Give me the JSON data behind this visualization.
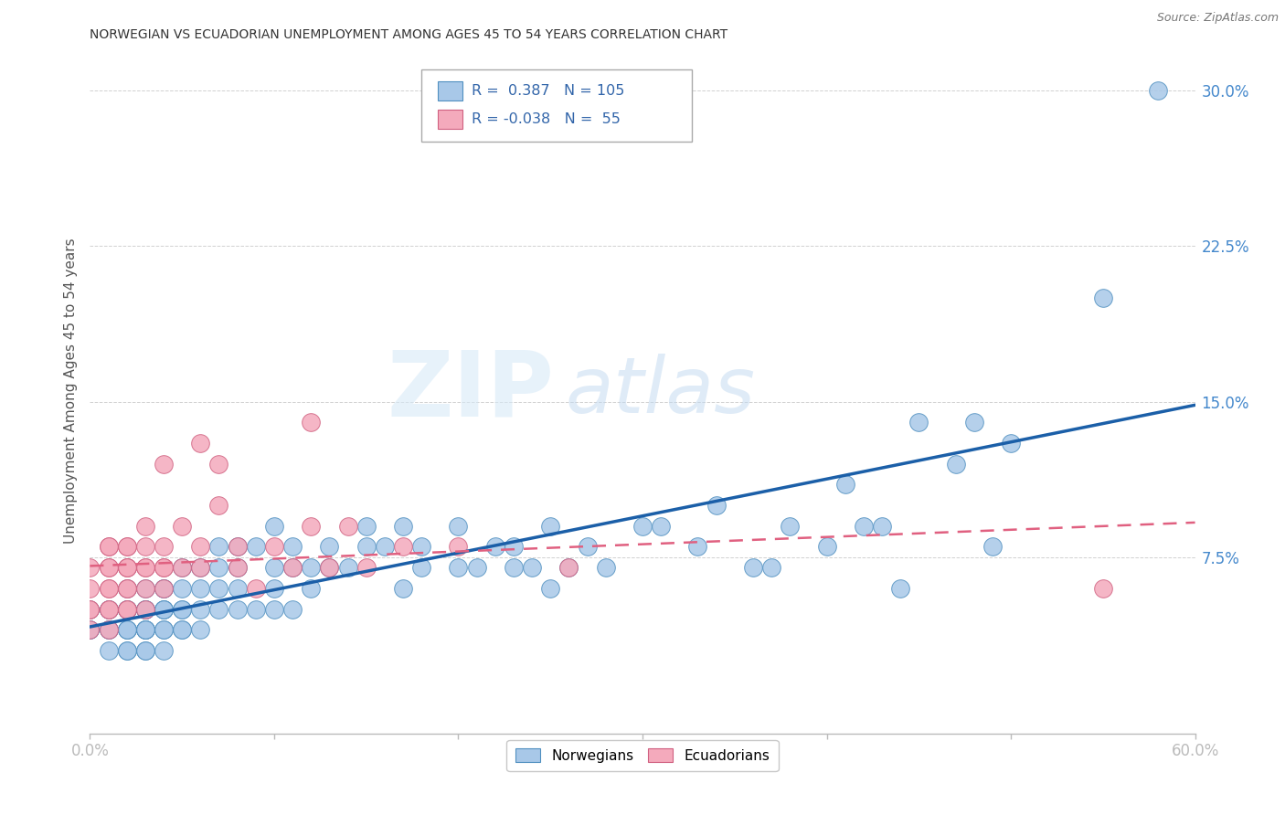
{
  "title": "NORWEGIAN VS ECUADORIAN UNEMPLOYMENT AMONG AGES 45 TO 54 YEARS CORRELATION CHART",
  "source": "Source: ZipAtlas.com",
  "ylabel": "Unemployment Among Ages 45 to 54 years",
  "xlim": [
    0.0,
    0.6
  ],
  "ylim": [
    -0.01,
    0.32
  ],
  "yticks": [
    0.075,
    0.15,
    0.225,
    0.3
  ],
  "ytick_labels": [
    "7.5%",
    "15.0%",
    "22.5%",
    "30.0%"
  ],
  "xticks": [
    0.0,
    0.1,
    0.2,
    0.3,
    0.4,
    0.5,
    0.6
  ],
  "norwegian_color": "#A8C8E8",
  "norwegian_edge_color": "#5090C0",
  "ecuadorian_color": "#F4AABC",
  "ecuadorian_edge_color": "#D06080",
  "norwegian_line_color": "#1B5FA8",
  "ecuadorian_line_color": "#E06080",
  "legend_R_norwegian": "0.387",
  "legend_N_norwegian": "105",
  "legend_R_ecuadorian": "-0.038",
  "legend_N_ecuadorian": "55",
  "watermark_zip": "ZIP",
  "watermark_atlas": "atlas",
  "background_color": "#ffffff",
  "title_fontsize": 11,
  "norwegian_x": [
    0.0,
    0.0,
    0.0,
    0.01,
    0.01,
    0.01,
    0.01,
    0.01,
    0.02,
    0.02,
    0.02,
    0.02,
    0.02,
    0.02,
    0.02,
    0.02,
    0.02,
    0.03,
    0.03,
    0.03,
    0.03,
    0.03,
    0.03,
    0.03,
    0.03,
    0.03,
    0.03,
    0.04,
    0.04,
    0.04,
    0.04,
    0.04,
    0.04,
    0.04,
    0.04,
    0.05,
    0.05,
    0.05,
    0.05,
    0.05,
    0.05,
    0.06,
    0.06,
    0.06,
    0.06,
    0.07,
    0.07,
    0.07,
    0.07,
    0.08,
    0.08,
    0.08,
    0.08,
    0.09,
    0.09,
    0.1,
    0.1,
    0.1,
    0.1,
    0.11,
    0.11,
    0.11,
    0.12,
    0.12,
    0.13,
    0.13,
    0.14,
    0.15,
    0.15,
    0.16,
    0.17,
    0.17,
    0.18,
    0.18,
    0.2,
    0.2,
    0.21,
    0.22,
    0.23,
    0.23,
    0.24,
    0.25,
    0.25,
    0.26,
    0.27,
    0.28,
    0.3,
    0.31,
    0.33,
    0.34,
    0.36,
    0.37,
    0.38,
    0.4,
    0.41,
    0.42,
    0.43,
    0.44,
    0.45,
    0.47,
    0.48,
    0.49,
    0.5,
    0.55,
    0.58
  ],
  "norwegian_y": [
    0.04,
    0.04,
    0.05,
    0.03,
    0.04,
    0.04,
    0.05,
    0.05,
    0.03,
    0.03,
    0.04,
    0.04,
    0.04,
    0.05,
    0.05,
    0.05,
    0.06,
    0.03,
    0.03,
    0.04,
    0.04,
    0.04,
    0.04,
    0.05,
    0.05,
    0.05,
    0.06,
    0.03,
    0.04,
    0.04,
    0.05,
    0.05,
    0.05,
    0.06,
    0.06,
    0.04,
    0.04,
    0.05,
    0.05,
    0.06,
    0.07,
    0.04,
    0.05,
    0.06,
    0.07,
    0.05,
    0.06,
    0.07,
    0.08,
    0.05,
    0.06,
    0.07,
    0.08,
    0.05,
    0.08,
    0.05,
    0.06,
    0.07,
    0.09,
    0.05,
    0.07,
    0.08,
    0.06,
    0.07,
    0.07,
    0.08,
    0.07,
    0.08,
    0.09,
    0.08,
    0.06,
    0.09,
    0.07,
    0.08,
    0.07,
    0.09,
    0.07,
    0.08,
    0.07,
    0.08,
    0.07,
    0.06,
    0.09,
    0.07,
    0.08,
    0.07,
    0.09,
    0.09,
    0.08,
    0.1,
    0.07,
    0.07,
    0.09,
    0.08,
    0.11,
    0.09,
    0.09,
    0.06,
    0.14,
    0.12,
    0.14,
    0.08,
    0.13,
    0.2,
    0.3
  ],
  "ecuadorian_x": [
    0.0,
    0.0,
    0.0,
    0.0,
    0.0,
    0.01,
    0.01,
    0.01,
    0.01,
    0.01,
    0.01,
    0.01,
    0.01,
    0.01,
    0.02,
    0.02,
    0.02,
    0.02,
    0.02,
    0.02,
    0.02,
    0.02,
    0.02,
    0.03,
    0.03,
    0.03,
    0.03,
    0.03,
    0.03,
    0.04,
    0.04,
    0.04,
    0.04,
    0.04,
    0.05,
    0.05,
    0.06,
    0.06,
    0.06,
    0.07,
    0.07,
    0.08,
    0.08,
    0.09,
    0.1,
    0.11,
    0.12,
    0.12,
    0.13,
    0.14,
    0.15,
    0.17,
    0.2,
    0.26,
    0.55
  ],
  "ecuadorian_y": [
    0.04,
    0.05,
    0.05,
    0.06,
    0.07,
    0.04,
    0.05,
    0.05,
    0.06,
    0.06,
    0.07,
    0.07,
    0.08,
    0.08,
    0.05,
    0.05,
    0.06,
    0.06,
    0.07,
    0.07,
    0.07,
    0.08,
    0.08,
    0.05,
    0.06,
    0.07,
    0.07,
    0.08,
    0.09,
    0.06,
    0.07,
    0.07,
    0.08,
    0.12,
    0.07,
    0.09,
    0.07,
    0.08,
    0.13,
    0.1,
    0.12,
    0.07,
    0.08,
    0.06,
    0.08,
    0.07,
    0.09,
    0.14,
    0.07,
    0.09,
    0.07,
    0.08,
    0.08,
    0.07,
    0.06
  ]
}
